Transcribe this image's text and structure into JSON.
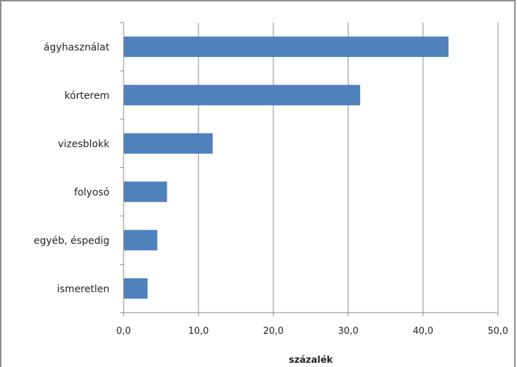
{
  "chart_data": {
    "type": "bar",
    "orientation": "horizontal",
    "categories": [
      "ágyhasználat",
      "kórterem",
      "vizesblokk",
      "folyosó",
      "egyéb, éspedig",
      "ismeretlen"
    ],
    "values": [
      43.4,
      31.6,
      11.9,
      5.8,
      4.5,
      3.2
    ],
    "xlabel": "százalék",
    "ylabel": "",
    "xlim": [
      0,
      50
    ],
    "x_ticks": [
      "0,0",
      "10,0",
      "20,0",
      "30,0",
      "40,0",
      "50,0"
    ],
    "grid": "vertical",
    "legend": "none",
    "bar_color": "#4f81bd"
  }
}
